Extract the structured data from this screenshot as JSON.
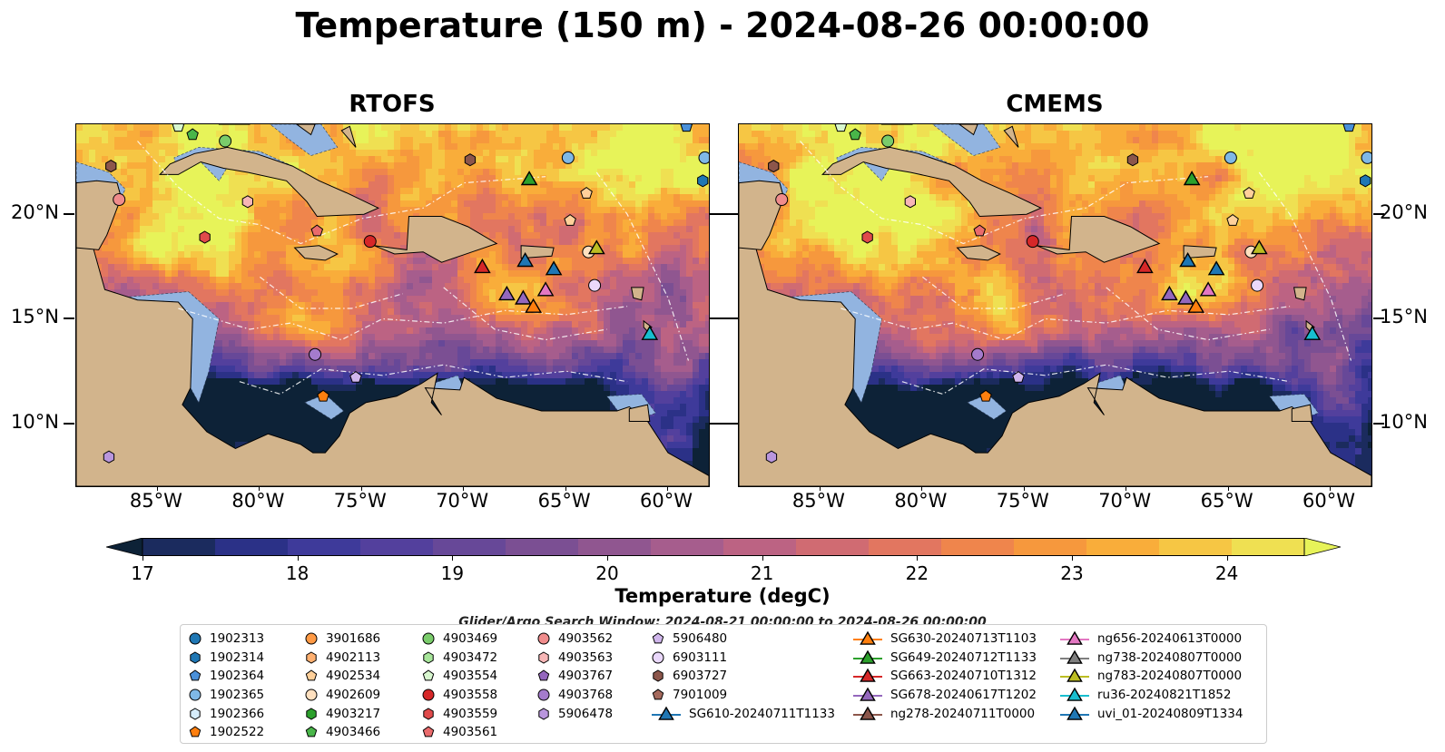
{
  "title": "Temperature (150 m) - 2024-08-26 00:00:00",
  "panels": [
    {
      "title": "RTOFS"
    },
    {
      "title": "CMEMS"
    }
  ],
  "axes": {
    "lon_ticks": [
      "85°W",
      "80°W",
      "75°W",
      "70°W",
      "65°W",
      "60°W"
    ],
    "lat_ticks": [
      "20°N",
      "15°N",
      "10°N"
    ],
    "lon_range": [
      -89,
      -58
    ],
    "lat_range": [
      7,
      24.3
    ]
  },
  "colorbar": {
    "label": "Temperature (degC)",
    "ticks": [
      "17",
      "18",
      "19",
      "20",
      "21",
      "22",
      "23",
      "24"
    ],
    "range": [
      17,
      24.5
    ],
    "extend": "both",
    "colormap": "thermal",
    "colors": [
      "#0d2237",
      "#1b2b5e",
      "#2b3187",
      "#3e3a9a",
      "#53409d",
      "#674898",
      "#7b4f93",
      "#905690",
      "#a65d8d",
      "#bc6383",
      "#d06b72",
      "#e27660",
      "#ef854c",
      "#f6983d",
      "#f9ad3a",
      "#f6c644",
      "#efe052",
      "#e7f359"
    ]
  },
  "search_window": "Glider/Argo Search Window: 2024-08-21 00:00:00 to 2024-08-26 00:00:00",
  "land_color": "#d2b48c",
  "shelf_color": "#92b4e0",
  "legend": {
    "columns": [
      [
        {
          "label": "1902313",
          "marker": "circle",
          "color": "#1f77b4"
        },
        {
          "label": "1902314",
          "marker": "hexagon",
          "color": "#1f77b4"
        },
        {
          "label": "1902364",
          "marker": "pentagon",
          "color": "#4a90d9"
        },
        {
          "label": "1902365",
          "marker": "circle",
          "color": "#7fb8e6"
        },
        {
          "label": "1902366",
          "marker": "hexagon",
          "color": "#d6ecfa"
        },
        {
          "label": "1902522",
          "marker": "pentagon",
          "color": "#ff7f0e"
        }
      ],
      [
        {
          "label": "3901686",
          "marker": "circle",
          "color": "#ff9a45"
        },
        {
          "label": "4902113",
          "marker": "hexagon",
          "color": "#ffb070"
        },
        {
          "label": "4902534",
          "marker": "pentagon",
          "color": "#ffd09a"
        },
        {
          "label": "4902609",
          "marker": "circle",
          "color": "#ffe0bf"
        },
        {
          "label": "4903217",
          "marker": "hexagon",
          "color": "#2ca02c"
        },
        {
          "label": "4903466",
          "marker": "pentagon",
          "color": "#49b649"
        }
      ],
      [
        {
          "label": "4903469",
          "marker": "circle",
          "color": "#7acc6b"
        },
        {
          "label": "4903472",
          "marker": "hexagon",
          "color": "#a7e59a"
        },
        {
          "label": "4903554",
          "marker": "pentagon",
          "color": "#d8f7cf"
        },
        {
          "label": "4903558",
          "marker": "circle",
          "color": "#d62728"
        },
        {
          "label": "4903559",
          "marker": "hexagon",
          "color": "#e04a4b"
        },
        {
          "label": "4903561",
          "marker": "pentagon",
          "color": "#ea6b6c"
        }
      ],
      [
        {
          "label": "4903562",
          "marker": "circle",
          "color": "#f08c8c"
        },
        {
          "label": "4903563",
          "marker": "hexagon",
          "color": "#f7b6b6"
        },
        {
          "label": "4903767",
          "marker": "pentagon",
          "color": "#9467bd"
        },
        {
          "label": "4903768",
          "marker": "circle",
          "color": "#a47bcc"
        },
        {
          "label": "5906478",
          "marker": "hexagon",
          "color": "#b996dd"
        }
      ],
      [
        {
          "label": "5906480",
          "marker": "pentagon",
          "color": "#d0b6ec"
        },
        {
          "label": "6903111",
          "marker": "circle",
          "color": "#ead8fb"
        },
        {
          "label": "6903727",
          "marker": "hexagon",
          "color": "#8c564b"
        },
        {
          "label": "7901009",
          "marker": "pentagon",
          "color": "#a56a5d"
        },
        {
          "label": "SG610-20240711T1133",
          "marker": "triangle",
          "color": "#1f77b4"
        }
      ],
      [
        {
          "label": "SG630-20240713T1103",
          "marker": "triangle",
          "color": "#ff7f0e"
        },
        {
          "label": "SG649-20240712T1133",
          "marker": "triangle",
          "color": "#2ca02c"
        },
        {
          "label": "SG663-20240710T1312",
          "marker": "triangle",
          "color": "#d62728"
        },
        {
          "label": "SG678-20240617T1202",
          "marker": "triangle",
          "color": "#9467bd"
        },
        {
          "label": "ng278-20240711T0000",
          "marker": "triangle",
          "color": "#8c564b"
        }
      ],
      [
        {
          "label": "ng656-20240613T0000",
          "marker": "triangle",
          "color": "#e377c2"
        },
        {
          "label": "ng738-20240807T0000",
          "marker": "triangle",
          "color": "#7f7f7f"
        },
        {
          "label": "ng783-20240807T0000",
          "marker": "triangle",
          "color": "#bcbd22"
        },
        {
          "label": "ru36-20240821T1852",
          "marker": "triangle",
          "color": "#17becf"
        },
        {
          "label": "uvi_01-20240809T1334",
          "marker": "triangle",
          "color": "#1f77b4"
        }
      ]
    ]
  },
  "markers": [
    {
      "lon": -86.9,
      "lat": 20.7,
      "marker": "circle",
      "color": "#f08c8c"
    },
    {
      "lon": -87.3,
      "lat": 22.3,
      "marker": "hexagon",
      "color": "#8c564b"
    },
    {
      "lon": -84.0,
      "lat": 24.2,
      "marker": "pentagon",
      "color": "#d8f7cf"
    },
    {
      "lon": -83.3,
      "lat": 23.8,
      "marker": "pentagon",
      "color": "#49b649"
    },
    {
      "lon": -81.7,
      "lat": 23.5,
      "marker": "circle",
      "color": "#7acc6b"
    },
    {
      "lon": -80.6,
      "lat": 20.6,
      "marker": "hexagon",
      "color": "#f7b6b6"
    },
    {
      "lon": -77.2,
      "lat": 19.2,
      "marker": "pentagon",
      "color": "#ea6b6c"
    },
    {
      "lon": -82.7,
      "lat": 18.9,
      "marker": "hexagon",
      "color": "#e04a4b"
    },
    {
      "lon": -74.6,
      "lat": 18.7,
      "marker": "circle",
      "color": "#d62728"
    },
    {
      "lon": -69.7,
      "lat": 22.6,
      "marker": "hexagon",
      "color": "#8c564b"
    },
    {
      "lon": -64.9,
      "lat": 22.7,
      "marker": "circle",
      "color": "#7fb8e6"
    },
    {
      "lon": -64.0,
      "lat": 21.0,
      "marker": "pentagon",
      "color": "#ffd09a"
    },
    {
      "lon": -59.1,
      "lat": 24.2,
      "marker": "pentagon",
      "color": "#4a90d9"
    },
    {
      "lon": -58.2,
      "lat": 22.7,
      "marker": "circle",
      "color": "#7fb8e6"
    },
    {
      "lon": -58.3,
      "lat": 21.6,
      "marker": "hexagon",
      "color": "#1f77b4"
    },
    {
      "lon": -64.8,
      "lat": 19.7,
      "marker": "pentagon",
      "color": "#ffd09a"
    },
    {
      "lon": -63.9,
      "lat": 18.2,
      "marker": "circle",
      "color": "#ffe0bf"
    },
    {
      "lon": -63.6,
      "lat": 16.6,
      "marker": "circle",
      "color": "#ead8fb"
    },
    {
      "lon": -77.3,
      "lat": 13.3,
      "marker": "circle",
      "color": "#a47bcc"
    },
    {
      "lon": -75.3,
      "lat": 12.2,
      "marker": "pentagon",
      "color": "#d0b6ec"
    },
    {
      "lon": -76.9,
      "lat": 11.3,
      "marker": "pentagon",
      "color": "#ff7f0e"
    },
    {
      "lon": -87.4,
      "lat": 8.4,
      "marker": "hexagon",
      "color": "#b996dd"
    },
    {
      "lon": -66.8,
      "lat": 21.7,
      "marker": "triangle",
      "color": "#2ca02c"
    },
    {
      "lon": -69.1,
      "lat": 17.5,
      "marker": "triangle",
      "color": "#d62728"
    },
    {
      "lon": -67.0,
      "lat": 17.8,
      "marker": "triangle",
      "color": "#1f77b4"
    },
    {
      "lon": -65.6,
      "lat": 17.4,
      "marker": "triangle",
      "color": "#1f77b4"
    },
    {
      "lon": -67.9,
      "lat": 16.2,
      "marker": "triangle",
      "color": "#9467bd"
    },
    {
      "lon": -67.1,
      "lat": 16.0,
      "marker": "triangle",
      "color": "#9467bd"
    },
    {
      "lon": -66.6,
      "lat": 15.6,
      "marker": "triangle",
      "color": "#ff7f0e"
    },
    {
      "lon": -66.0,
      "lat": 16.4,
      "marker": "triangle",
      "color": "#e377c2"
    },
    {
      "lon": -63.5,
      "lat": 18.4,
      "marker": "triangle",
      "color": "#bcbd22"
    },
    {
      "lon": -60.9,
      "lat": 14.3,
      "marker": "triangle",
      "color": "#17becf"
    }
  ]
}
